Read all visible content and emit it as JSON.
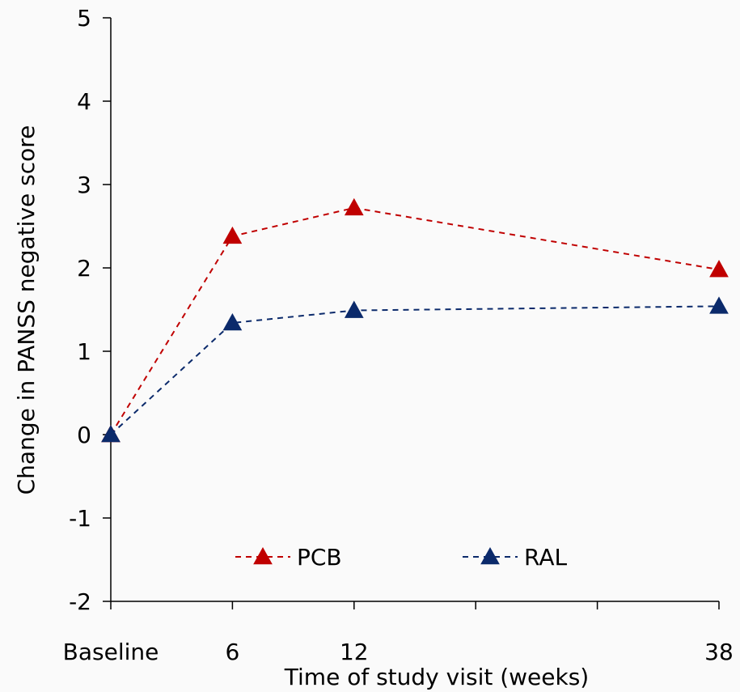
{
  "chart_data": {
    "type": "line",
    "xlabel": "Time of study visit (weeks)",
    "ylabel": "Change in PANSS negative score",
    "ylim": [
      -2,
      5
    ],
    "yticks": [
      "-2",
      "-1",
      "0",
      "1",
      "2",
      "3",
      "4",
      "5"
    ],
    "categories": [
      "Baseline",
      "6",
      "12",
      "",
      "",
      "38"
    ],
    "grid": false,
    "legend_position": "bottom-center",
    "series": [
      {
        "name": "PCB",
        "color": "#c00000",
        "marker": "triangle",
        "line_style": "dashed",
        "points": [
          {
            "cat": 0,
            "y": 0
          },
          {
            "cat": 1,
            "y": 2.38
          },
          {
            "cat": 2,
            "y": 2.72
          },
          {
            "cat": 5,
            "y": 1.98
          }
        ]
      },
      {
        "name": "RAL",
        "color": "#0b2a6b",
        "marker": "triangle",
        "line_style": "dashed",
        "points": [
          {
            "cat": 0,
            "y": 0
          },
          {
            "cat": 1,
            "y": 1.34
          },
          {
            "cat": 2,
            "y": 1.49
          },
          {
            "cat": 5,
            "y": 1.54
          }
        ]
      }
    ]
  }
}
